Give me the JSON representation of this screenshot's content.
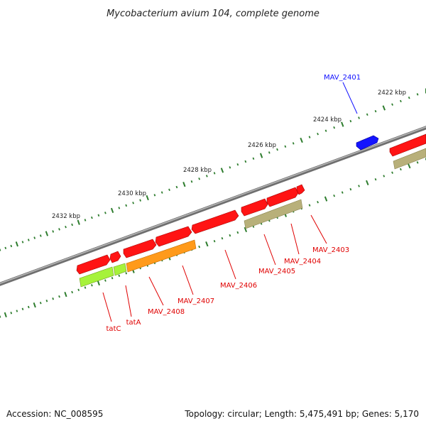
{
  "title": "Mycobacterium avium 104, complete genome",
  "scale_labels": [
    "2422 kbp",
    "2424 kbp",
    "2426 kbp",
    "2428 kbp",
    "2430 kbp",
    "2432 kbp"
  ],
  "genes": [
    {
      "name": "MAV_2401",
      "color": "#1010ff"
    },
    {
      "name": "MAV_2403",
      "color": "#e00000"
    },
    {
      "name": "MAV_2404",
      "color": "#e00000"
    },
    {
      "name": "MAV_2405",
      "color": "#e00000"
    },
    {
      "name": "MAV_2406",
      "color": "#e00000"
    },
    {
      "name": "MAV_2407",
      "color": "#e00000"
    },
    {
      "name": "MAV_2408",
      "color": "#e00000"
    },
    {
      "name": "tatA",
      "color": "#e00000"
    },
    {
      "name": "tatC",
      "color": "#e00000"
    }
  ],
  "feature_colors": {
    "forward_gene": "#ff1414",
    "reverse_gene": "#1414ff",
    "cds_green": "#a6f23a",
    "cds_orange": "#ff9a1a",
    "cds_khaki": "#b8b07a",
    "backbone": "#8a8a8a",
    "ticks": "#2e7d2e"
  },
  "footer": {
    "accession": "Accession: NC_008595",
    "summary": "Topology: circular; Length: 5,475,491 bp; Genes: 5,170"
  }
}
